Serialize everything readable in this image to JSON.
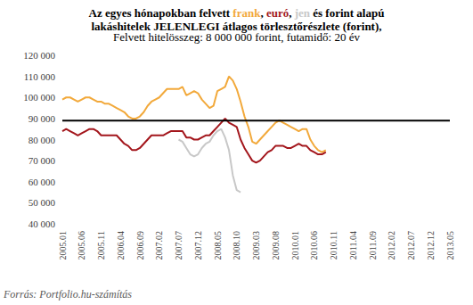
{
  "chart_data": {
    "type": "line",
    "title": "Az egyes hónapokban felvett frank, euró, jen és forint alapú\nlakáshitelek JELENLEGI átlagos törlesztőrészlete (forint),",
    "subtitle": "Felvett hitelösszeg: 8 000 000 forint, futamidő: 20 év",
    "source": "Forrás: Portfolio.hu-számítás",
    "categories": [
      "2005.01",
      null,
      null,
      null,
      null,
      "2005.06",
      null,
      null,
      null,
      null,
      "2005.11",
      null,
      null,
      null,
      null,
      "2006.04",
      null,
      null,
      null,
      null,
      "2006.09",
      null,
      null,
      null,
      null,
      "2007.02",
      null,
      null,
      null,
      null,
      "2007.07",
      null,
      null,
      null,
      null,
      "2007.12",
      null,
      null,
      null,
      null,
      "2008.05",
      null,
      null,
      null,
      null,
      "2008.10",
      null,
      null,
      null,
      null,
      "2009.03",
      null,
      null,
      null,
      null,
      "2009.08",
      null,
      null,
      null,
      null,
      "2010.01",
      null,
      null,
      null,
      null,
      "2010.06",
      null,
      null,
      null,
      null,
      "2010.11",
      null,
      null,
      null,
      null,
      "2011.04",
      null,
      null,
      null,
      null,
      "2011.09",
      null,
      null,
      null,
      null,
      "2012.02",
      null,
      null,
      null,
      null,
      "2012.07",
      null,
      null,
      null,
      null,
      "2012.12",
      null,
      null,
      null,
      null,
      "2013.05"
    ],
    "series": [
      {
        "name": "frank",
        "color": "#f2a93b",
        "values": [
          99000,
          100000,
          100000,
          99000,
          98000,
          99000,
          100000,
          100000,
          99000,
          98000,
          98000,
          97000,
          97000,
          96000,
          95000,
          94000,
          93000,
          91000,
          90000,
          90000,
          91000,
          93000,
          96000,
          98000,
          99000,
          100000,
          102000,
          104000,
          104000,
          104000,
          104000,
          105000,
          101000,
          102000,
          103000,
          102000,
          99000,
          97000,
          95000,
          96000,
          103000,
          104000,
          105000,
          110000,
          108000,
          104000,
          98000,
          91000,
          86000,
          79000,
          78000,
          80000,
          82000,
          84000,
          86000,
          88000,
          89000,
          88000,
          87000,
          86000,
          85000,
          84000,
          85000,
          85000,
          80000,
          77000,
          75000,
          74000,
          75000,
          null,
          null,
          null,
          null,
          null,
          null,
          null,
          null,
          null,
          null,
          null,
          null,
          null,
          null,
          null,
          null,
          null,
          null,
          null,
          null,
          null,
          null,
          null,
          null,
          null,
          null,
          null,
          null,
          null,
          null,
          null,
          null
        ]
      },
      {
        "name": "euró",
        "color": "#a3161c",
        "values": [
          84000,
          85000,
          84000,
          83000,
          82000,
          83000,
          84000,
          85000,
          85000,
          84000,
          82000,
          82000,
          82000,
          82000,
          82000,
          80000,
          78000,
          77000,
          75000,
          75000,
          76000,
          78000,
          80000,
          82000,
          82000,
          82000,
          82000,
          83000,
          84000,
          84000,
          84000,
          84000,
          81000,
          81000,
          80000,
          80000,
          81000,
          82000,
          82000,
          84000,
          86000,
          88000,
          90000,
          88000,
          87000,
          86000,
          80000,
          76000,
          73000,
          70000,
          69000,
          70000,
          72000,
          74000,
          75000,
          77000,
          77000,
          77000,
          76000,
          76000,
          77000,
          78000,
          77000,
          77000,
          75000,
          74000,
          73000,
          73000,
          74000,
          null,
          null,
          null,
          null,
          null,
          null,
          null,
          null,
          null,
          null,
          null,
          null,
          null,
          null,
          null,
          null,
          null,
          null,
          null,
          null,
          null,
          null,
          null,
          null,
          null,
          null,
          null,
          null,
          null,
          null,
          null,
          null
        ]
      },
      {
        "name": "jen",
        "color": "#c8c8c8",
        "values": [
          null,
          null,
          null,
          null,
          null,
          null,
          null,
          null,
          null,
          null,
          null,
          null,
          null,
          null,
          null,
          null,
          null,
          null,
          null,
          null,
          null,
          null,
          null,
          null,
          null,
          null,
          null,
          null,
          null,
          null,
          80000,
          79000,
          76000,
          73000,
          72000,
          73000,
          76000,
          78000,
          79000,
          82000,
          84000,
          85000,
          81000,
          75000,
          63000,
          56000,
          55000,
          null,
          null,
          null,
          null,
          null,
          null,
          null,
          null,
          null,
          null,
          null,
          null,
          null,
          null,
          null,
          null,
          null,
          null,
          null,
          null,
          null,
          null,
          null,
          null,
          null,
          null,
          null,
          null,
          null,
          null,
          null,
          null,
          null,
          null,
          null,
          null,
          null,
          null,
          null,
          null,
          null,
          null,
          null,
          null,
          null,
          null,
          null,
          null,
          null,
          null,
          null,
          null,
          null,
          null
        ]
      },
      {
        "name": "forint",
        "color": "#000000",
        "values": [
          89000,
          89000,
          89000,
          89000,
          89000,
          89000,
          89000,
          89000,
          89000,
          89000,
          89000,
          89000,
          89000,
          89000,
          89000,
          89000,
          89000,
          89000,
          89000,
          89000,
          89000,
          89000,
          89000,
          89000,
          89000,
          89000,
          89000,
          89000,
          89000,
          89000,
          89000,
          89000,
          89000,
          89000,
          89000,
          89000,
          89000,
          89000,
          89000,
          89000,
          89000,
          89000,
          89000,
          89000,
          89000,
          89000,
          89000,
          89000,
          89000,
          89000,
          89000,
          89000,
          89000,
          89000,
          89000,
          89000,
          89000,
          89000,
          89000,
          89000,
          89000,
          89000,
          89000,
          89000,
          89000,
          89000,
          89000,
          89000,
          89000,
          89000,
          89000,
          89000,
          89000,
          89000,
          89000,
          89000,
          89000,
          89000,
          89000,
          89000,
          89000,
          89000,
          89000,
          89000,
          89000,
          89000,
          89000,
          89000,
          89000,
          89000,
          89000,
          89000,
          89000,
          89000,
          89000,
          89000,
          89000,
          89000,
          89000,
          89000,
          89000
        ]
      }
    ],
    "ylim": [
      40000,
      120000
    ],
    "yticks": [
      {
        "value": 40000,
        "label": "40 000"
      },
      {
        "value": 50000,
        "label": "50 000"
      },
      {
        "value": 60000,
        "label": "60 000"
      },
      {
        "value": 70000,
        "label": "70 000"
      },
      {
        "value": 80000,
        "label": "80 000"
      },
      {
        "value": 90000,
        "label": "90 000"
      },
      {
        "value": 100000,
        "label": "100 000"
      },
      {
        "value": 110000,
        "label": "110 000"
      },
      {
        "value": 120000,
        "label": "120 000"
      }
    ],
    "grid": false,
    "marker": "none"
  }
}
